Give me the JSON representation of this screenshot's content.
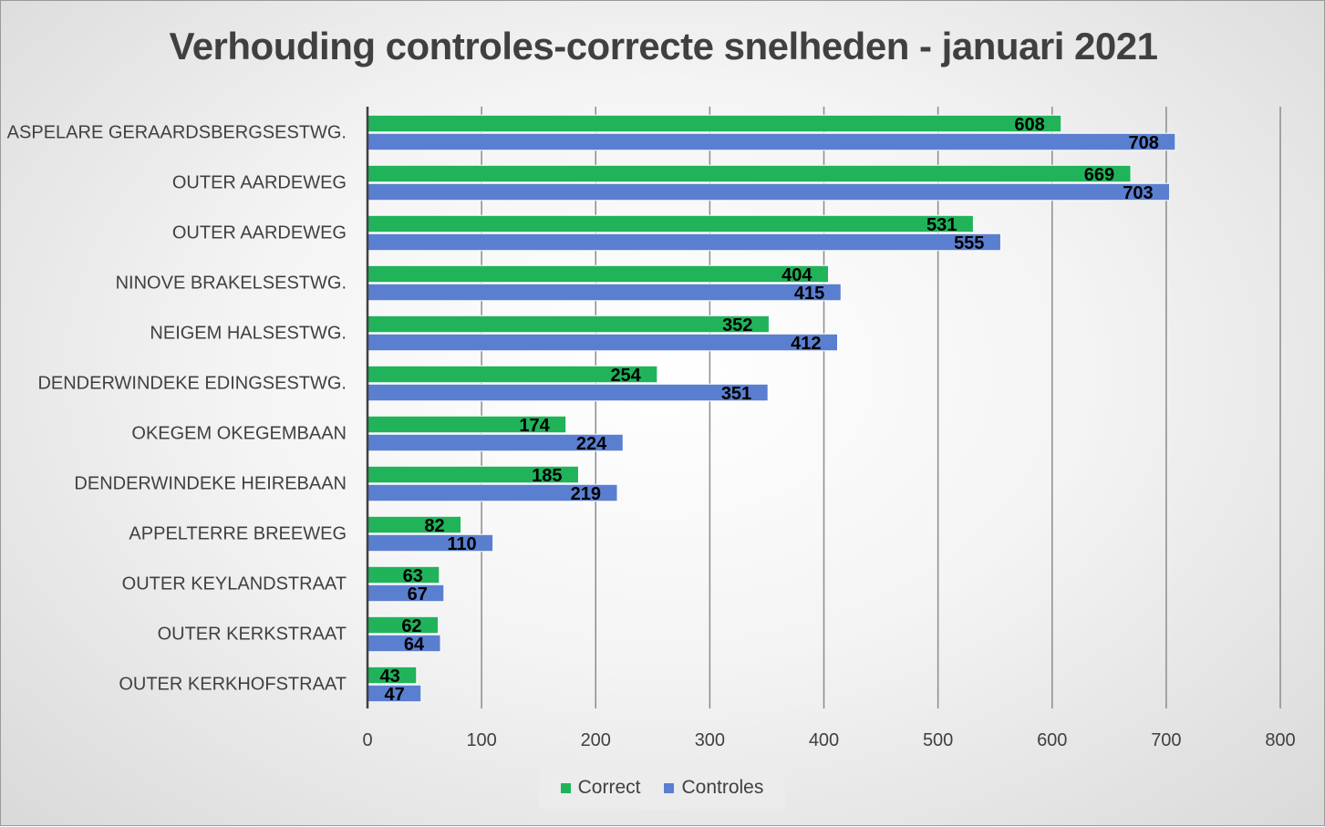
{
  "chart_data": {
    "type": "bar",
    "orientation": "horizontal",
    "title": "Verhouding controles-correcte snelheden - januari 2021",
    "categories": [
      "ASPELARE GERAARDSBERGSESTWG.",
      "OUTER AARDEWEG",
      "OUTER AARDEWEG",
      "NINOVE BRAKELSESTWG.",
      "NEIGEM HALSESTWG.",
      "DENDERWINDEKE EDINGSESTWG.",
      "OKEGEM OKEGEMBAAN",
      "DENDERWINDEKE HEIREBAAN",
      "APPELTERRE BREEWEG",
      "OUTER KEYLANDSTRAAT",
      "OUTER KERKSTRAAT",
      "OUTER KERKHOFSTRAAT"
    ],
    "series": [
      {
        "name": "Correct",
        "color": "#21b35a",
        "values": [
          608,
          669,
          531,
          404,
          352,
          254,
          174,
          185,
          82,
          63,
          62,
          43
        ]
      },
      {
        "name": "Controles",
        "color": "#5b7fd0",
        "values": [
          708,
          703,
          555,
          415,
          412,
          351,
          224,
          219,
          110,
          67,
          64,
          47
        ]
      }
    ],
    "xlim": [
      0,
      800
    ],
    "xticks": [
      0,
      100,
      200,
      300,
      400,
      500,
      600,
      700,
      800
    ],
    "grid": "vertical",
    "legend": "bottom",
    "data_labels": true
  }
}
